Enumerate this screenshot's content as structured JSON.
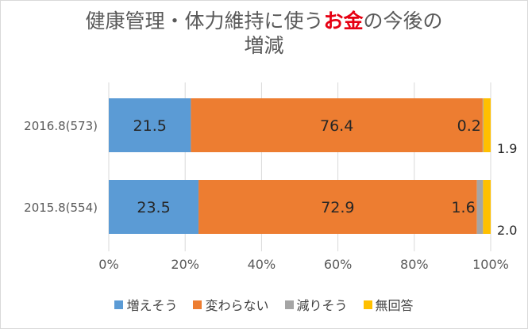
{
  "title": {
    "line1_pre": "健康管理・体力維持に使う",
    "line1_highlight": "お金",
    "line1_post": "の今後の",
    "line2": "増減"
  },
  "colors": {
    "highlight": "#e60012",
    "series": [
      "#5b9bd5",
      "#ed7d31",
      "#a5a5a5",
      "#ffc000"
    ]
  },
  "chart_data": {
    "type": "bar",
    "orientation": "horizontal",
    "stacked": true,
    "percent": true,
    "categories": [
      "2016.8(573)",
      "2015.8(554)"
    ],
    "series": [
      {
        "name": "増えそう",
        "values": [
          21.5,
          23.5
        ],
        "labels": [
          "21.5",
          "23.5"
        ]
      },
      {
        "name": "変わらない",
        "values": [
          76.4,
          72.9
        ],
        "labels": [
          "76.4",
          "72.9"
        ]
      },
      {
        "name": "減りそう",
        "values": [
          0.2,
          1.6
        ],
        "labels": [
          "0.2",
          "1.6"
        ]
      },
      {
        "name": "無回答",
        "values": [
          1.9,
          2.0
        ],
        "labels": [
          "1.9",
          "2.0"
        ]
      }
    ],
    "xticks": [
      "0%",
      "20%",
      "40%",
      "60%",
      "80%",
      "100%"
    ],
    "xlim": [
      0,
      100
    ],
    "grid": true,
    "legend": "bottom"
  }
}
